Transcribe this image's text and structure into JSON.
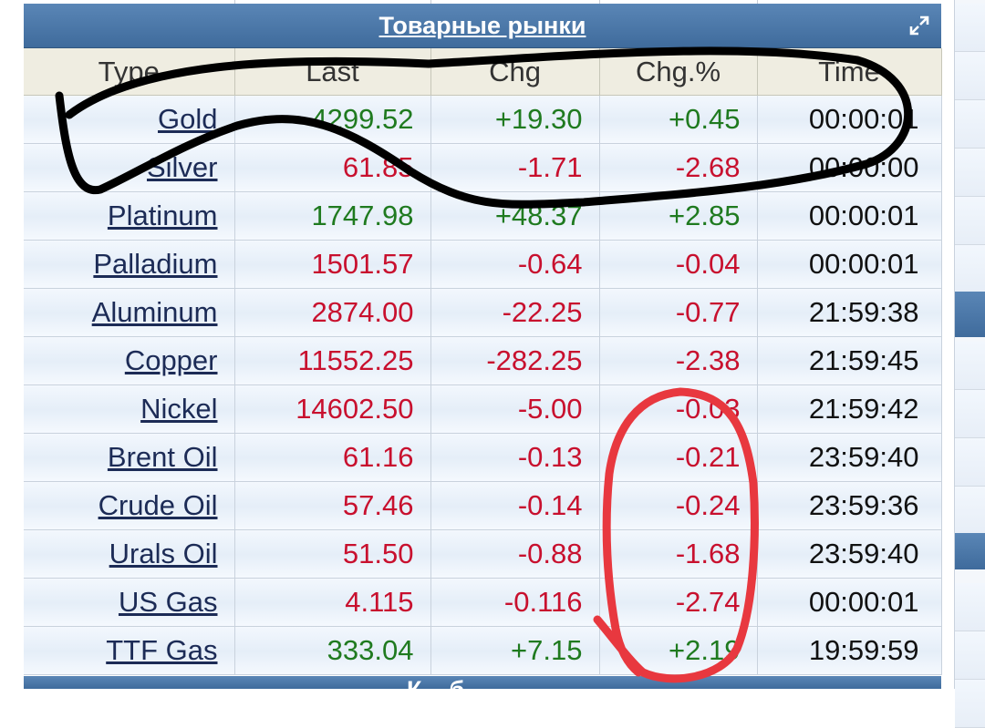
{
  "widget": {
    "title": "Товарные рынки",
    "bottom_title": "К... б...",
    "expand_icon": "expand-icon"
  },
  "table": {
    "headers": [
      "Type",
      "Last",
      "Chg",
      "Chg.%",
      "Time"
    ],
    "rows": [
      {
        "name": "Gold",
        "last": "4299.52",
        "chg": "+19.30",
        "pct": "+0.45",
        "time": "00:00:01",
        "trend": "pos"
      },
      {
        "name": "Silver",
        "last": "61.85",
        "chg": "-1.71",
        "pct": "-2.68",
        "time": "00:00:00",
        "trend": "neg"
      },
      {
        "name": "Platinum",
        "last": "1747.98",
        "chg": "+48.37",
        "pct": "+2.85",
        "time": "00:00:01",
        "trend": "pos"
      },
      {
        "name": "Palladium",
        "last": "1501.57",
        "chg": "-0.64",
        "pct": "-0.04",
        "time": "00:00:01",
        "trend": "neg"
      },
      {
        "name": "Aluminum",
        "last": "2874.00",
        "chg": "-22.25",
        "pct": "-0.77",
        "time": "21:59:38",
        "trend": "neg"
      },
      {
        "name": "Copper",
        "last": "11552.25",
        "chg": "-282.25",
        "pct": "-2.38",
        "time": "21:59:45",
        "trend": "neg"
      },
      {
        "name": "Nickel",
        "last": "14602.50",
        "chg": "-5.00",
        "pct": "-0.03",
        "time": "21:59:42",
        "trend": "neg"
      },
      {
        "name": "Brent Oil",
        "last": "61.16",
        "chg": "-0.13",
        "pct": "-0.21",
        "time": "23:59:40",
        "trend": "neg"
      },
      {
        "name": "Crude Oil",
        "last": "57.46",
        "chg": "-0.14",
        "pct": "-0.24",
        "time": "23:59:36",
        "trend": "neg"
      },
      {
        "name": "Urals Oil",
        "last": "51.50",
        "chg": "-0.88",
        "pct": "-1.68",
        "time": "23:59:40",
        "trend": "neg"
      },
      {
        "name": "US Gas",
        "last": "4.115",
        "chg": "-0.116",
        "pct": "-2.74",
        "time": "00:00:01",
        "trend": "neg"
      },
      {
        "name": "TTF Gas",
        "last": "333.04",
        "chg": "+7.15",
        "pct": "+2.19",
        "time": "19:59:59",
        "trend": "pos"
      }
    ]
  },
  "colors": {
    "positive": "#1f7a1f",
    "negative": "#c8102e",
    "header_bar": "#4a76a8",
    "black_scribble": "#000000",
    "red_scribble": "#e8383f"
  }
}
